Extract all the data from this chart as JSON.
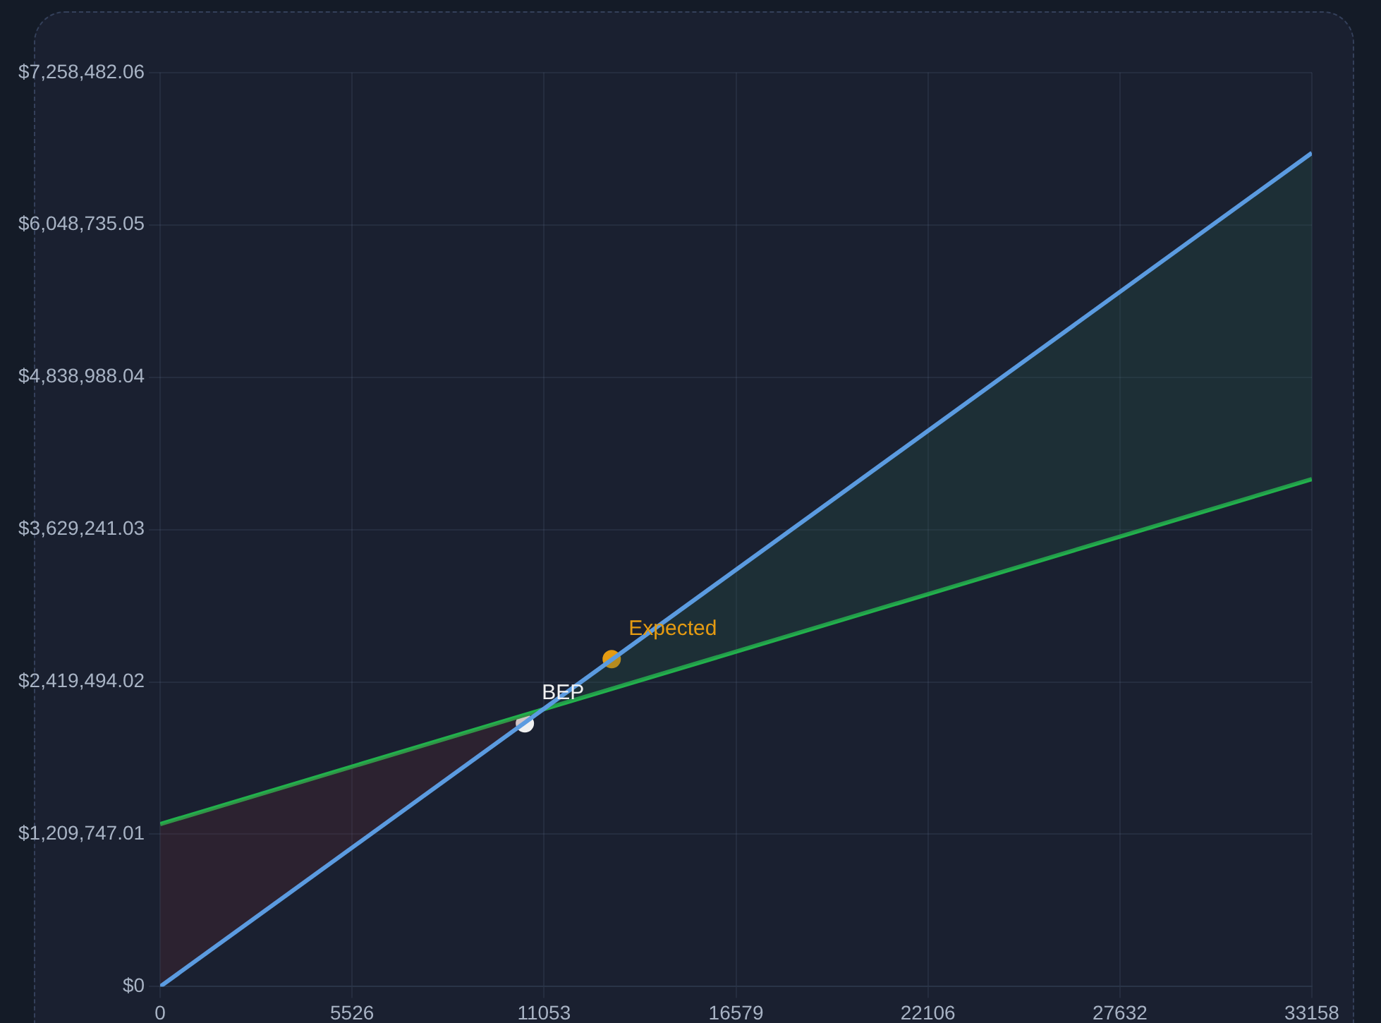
{
  "chart_data": {
    "type": "line",
    "xlim": [
      0,
      33158
    ],
    "xticks": [
      0,
      5526,
      11053,
      16579,
      22106,
      27632,
      33158
    ],
    "ylim": [
      0,
      7258482.06
    ],
    "yticks": [
      {
        "value": 0,
        "label": "$0"
      },
      {
        "value": 1209747.01,
        "label": "$1,209,747.01"
      },
      {
        "value": 2419494.02,
        "label": "$2,419,494.02"
      },
      {
        "value": 3629241.03,
        "label": "$3,629,241.03"
      },
      {
        "value": 4838988.04,
        "label": "$4,838,988.04"
      },
      {
        "value": 6048735.05,
        "label": "$6,048,735.05"
      },
      {
        "value": 7258482.06,
        "label": "$7,258,482.06"
      }
    ],
    "grid": true,
    "legend": false,
    "marker": "none",
    "series": [
      {
        "color": "#5b9be0",
        "x": [
          0,
          33158
        ],
        "values": [
          0,
          6620000
        ]
      },
      {
        "color": "#22b14c",
        "x": [
          0,
          33158
        ],
        "values": [
          1290000,
          4030000
        ]
      },
      {
        "name": "BEP",
        "type": "scatter",
        "marker": "circle",
        "color": "#f0f0f0",
        "x": [
          10500
        ],
        "values": [
          2090000
        ]
      },
      {
        "name": "Expected",
        "type": "scatter",
        "marker": "circle",
        "color": "#e59b12",
        "x": [
          13000
        ],
        "values": [
          2600000
        ]
      }
    ]
  }
}
